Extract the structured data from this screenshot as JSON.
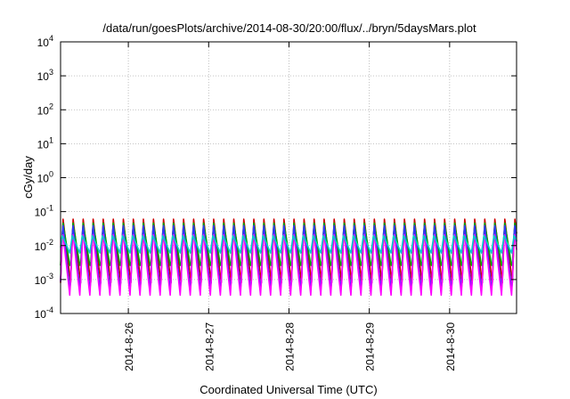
{
  "chart_data": {
    "type": "line",
    "title": "/data/run/goesPlots/archive/2014-08-30/20:00/flux/../bryn/5daysMars.plot",
    "xlabel": "Coordinated Universal Time (UTC)",
    "ylabel": "cGy/day",
    "yscale": "log",
    "ylim": [
      0.0001,
      10000
    ],
    "y_ticks": [
      {
        "base": "10",
        "exp": "-4",
        "value": 0.0001
      },
      {
        "base": "10",
        "exp": "-3",
        "value": 0.001
      },
      {
        "base": "10",
        "exp": "-2",
        "value": 0.01
      },
      {
        "base": "10",
        "exp": "-1",
        "value": 0.1
      },
      {
        "base": "10",
        "exp": "0",
        "value": 1
      },
      {
        "base": "10",
        "exp": "1",
        "value": 10
      },
      {
        "base": "10",
        "exp": "2",
        "value": 100
      },
      {
        "base": "10",
        "exp": "3",
        "value": 1000
      },
      {
        "base": "10",
        "exp": "4",
        "value": 10000
      }
    ],
    "xlim": [
      "2014-08-25T03:45",
      "2014-08-30T20:00"
    ],
    "x_ticks": [
      {
        "label": "2014-8-26",
        "date": "2014-08-26"
      },
      {
        "label": "2014-8-27",
        "date": "2014-08-27"
      },
      {
        "label": "2014-8-28",
        "date": "2014-08-28"
      },
      {
        "label": "2014-8-29",
        "date": "2014-08-29"
      },
      {
        "label": "2014-8-30",
        "date": "2014-08-30"
      }
    ],
    "grid": true,
    "oscillation_period_hours": 3,
    "series": [
      {
        "color": "#cc0000",
        "peak": 0.06,
        "trough": 0.0008
      },
      {
        "color": "#00aa00",
        "peak": 0.05,
        "trough": 0.002
      },
      {
        "color": "#3333ff",
        "peak": 0.05,
        "trough": 0.0004
      },
      {
        "color": "#ff00ff",
        "peak": 0.03,
        "trough": 0.0003
      },
      {
        "color": "#00cccc",
        "peak": 0.02,
        "trough": 0.006
      }
    ]
  }
}
